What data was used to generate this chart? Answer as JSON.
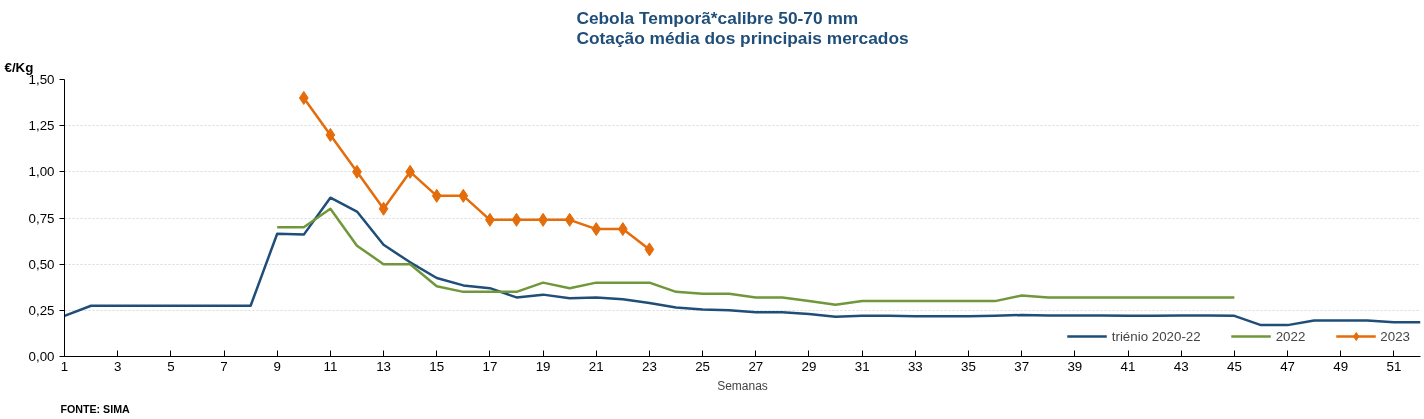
{
  "chart_data": {
    "type": "line",
    "title": "Cebola Temporã*calibre 50-70 mm\nCotação média dos principais mercados",
    "xlabel": "Semanas",
    "ylabel": "€/Kg",
    "annotations": [
      "FONTE: SIMA"
    ],
    "xlim": [
      1,
      52
    ],
    "xticks": [
      1,
      3,
      5,
      7,
      9,
      11,
      13,
      15,
      17,
      19,
      21,
      23,
      25,
      27,
      29,
      31,
      33,
      35,
      37,
      39,
      41,
      43,
      45,
      47,
      49,
      51
    ],
    "ylim": [
      0,
      1.5
    ],
    "yticks": [
      {
        "value": 0,
        "label": "0,00"
      },
      {
        "value": 0.25,
        "label": "0,25"
      },
      {
        "value": 0.5,
        "label": "0,50"
      },
      {
        "value": 0.75,
        "label": "0,75"
      },
      {
        "value": 1.0,
        "label": "1,00"
      },
      {
        "value": 1.25,
        "label": "1,25"
      },
      {
        "value": 1.5,
        "label": "1,50"
      }
    ],
    "grid": "y",
    "legend": "bottom right",
    "series": [
      {
        "name": "triénio 2020-22",
        "color": "#1f4e79",
        "marker": "none",
        "x": [
          1,
          2,
          3,
          4,
          5,
          6,
          7,
          8,
          9,
          10,
          11,
          12,
          13,
          14,
          15,
          16,
          17,
          18,
          19,
          20,
          21,
          22,
          23,
          24,
          25,
          26,
          27,
          28,
          29,
          30,
          31,
          32,
          33,
          34,
          35,
          36,
          37,
          38,
          39,
          40,
          41,
          42,
          43,
          44,
          45,
          46,
          47,
          48,
          49,
          50,
          51,
          52
        ],
        "values": [
          0.22,
          0.275,
          0.275,
          0.275,
          0.275,
          0.275,
          0.275,
          0.275,
          0.665,
          0.66,
          0.86,
          0.785,
          0.605,
          0.51,
          0.425,
          0.385,
          0.37,
          0.32,
          0.335,
          0.315,
          0.32,
          0.31,
          0.29,
          0.265,
          0.255,
          0.25,
          0.24,
          0.24,
          0.23,
          0.215,
          0.22,
          0.22,
          0.218,
          0.218,
          0.218,
          0.22,
          0.225,
          0.222,
          0.222,
          0.222,
          0.22,
          0.22,
          0.222,
          0.222,
          0.22,
          0.17,
          0.17,
          0.195,
          0.195,
          0.195,
          0.185,
          0.185
        ]
      },
      {
        "name": "2022",
        "color": "#70973a",
        "marker": "none",
        "x": [
          9,
          10,
          11,
          12,
          13,
          14,
          15,
          16,
          17,
          18,
          19,
          20,
          21,
          22,
          23,
          24,
          25,
          26,
          27,
          28,
          29,
          30,
          31,
          32,
          33,
          34,
          35,
          36,
          37,
          38,
          39,
          40,
          41,
          42,
          43,
          44,
          45
        ],
        "values": [
          0.7,
          0.7,
          0.8,
          0.6,
          0.5,
          0.5,
          0.38,
          0.35,
          0.35,
          0.35,
          0.4,
          0.37,
          0.4,
          0.4,
          0.4,
          0.35,
          0.34,
          0.34,
          0.32,
          0.32,
          0.3,
          0.28,
          0.3,
          0.3,
          0.3,
          0.3,
          0.3,
          0.3,
          0.33,
          0.32,
          0.32,
          0.32,
          0.32,
          0.32,
          0.32,
          0.32,
          0.32
        ]
      },
      {
        "name": "2023",
        "color": "#e46c0a",
        "marker": "diamond",
        "x": [
          10,
          11,
          12,
          13,
          14,
          15,
          16,
          17,
          18,
          19,
          20,
          21,
          22,
          23
        ],
        "values": [
          1.4,
          1.2,
          1.0,
          0.8,
          1.0,
          0.87,
          0.87,
          0.74,
          0.74,
          0.74,
          0.74,
          0.69,
          0.69,
          0.58
        ]
      }
    ]
  }
}
